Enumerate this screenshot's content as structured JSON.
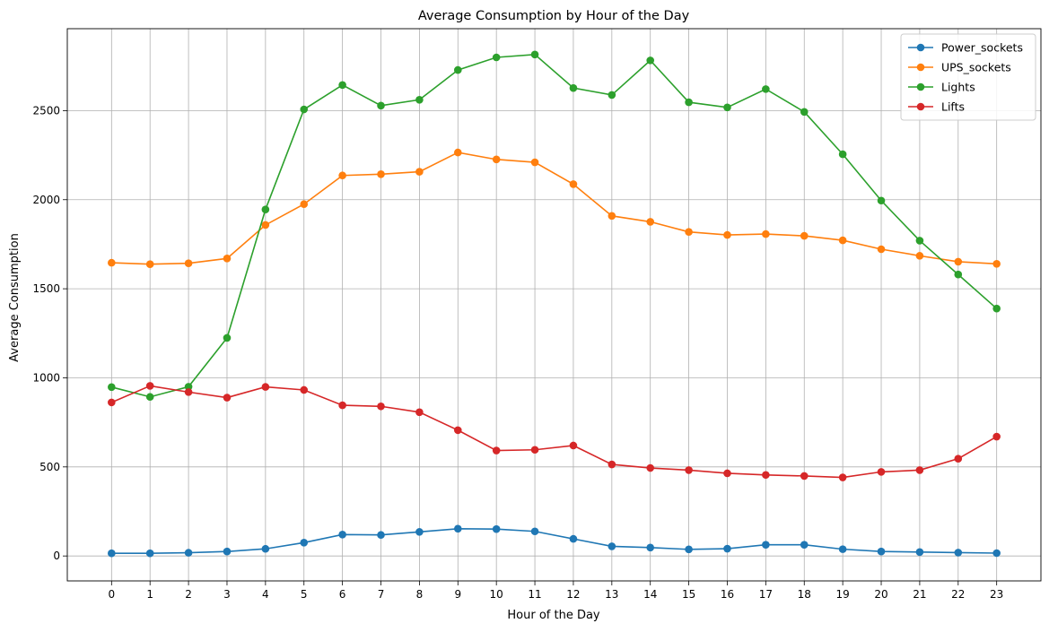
{
  "chart_data": {
    "type": "line",
    "title": "Average Consumption by Hour of the Day",
    "xlabel": "Hour of the Day",
    "ylabel": "Average Consumption",
    "x": [
      0,
      1,
      2,
      3,
      4,
      5,
      6,
      7,
      8,
      9,
      10,
      11,
      12,
      13,
      14,
      15,
      16,
      17,
      18,
      19,
      20,
      21,
      22,
      23
    ],
    "xlim": [
      -1.15,
      24.15
    ],
    "ylim": [
      -140,
      2960
    ],
    "yticks": [
      0,
      500,
      1000,
      1500,
      2000,
      2500
    ],
    "grid": true,
    "legend_position": "top-right",
    "series": [
      {
        "name": "Power_sockets",
        "color": "#1f77b4",
        "values": [
          15,
          15,
          18,
          25,
          40,
          75,
          120,
          118,
          135,
          153,
          151,
          138,
          96,
          54,
          47,
          37,
          41,
          63,
          63,
          38,
          25,
          22,
          19,
          16
        ]
      },
      {
        "name": "UPS_sockets",
        "color": "#ff7f0e",
        "values": [
          1646,
          1638,
          1643,
          1670,
          1858,
          1975,
          2136,
          2143,
          2157,
          2265,
          2226,
          2210,
          2087,
          1909,
          1876,
          1819,
          1802,
          1807,
          1797,
          1772,
          1722,
          1685,
          1652,
          1640
        ]
      },
      {
        "name": "Lights",
        "color": "#2ca02c",
        "values": [
          948,
          893,
          950,
          1224,
          1945,
          2507,
          2644,
          2528,
          2561,
          2728,
          2799,
          2815,
          2627,
          2588,
          2782,
          2547,
          2518,
          2621,
          2493,
          2255,
          1995,
          1770,
          1580,
          1389
        ]
      },
      {
        "name": "Lifts",
        "color": "#d62728",
        "values": [
          862,
          955,
          920,
          889,
          949,
          932,
          846,
          840,
          807,
          706,
          592,
          596,
          620,
          514,
          494,
          482,
          464,
          455,
          449,
          441,
          472,
          482,
          546,
          670
        ]
      }
    ]
  }
}
